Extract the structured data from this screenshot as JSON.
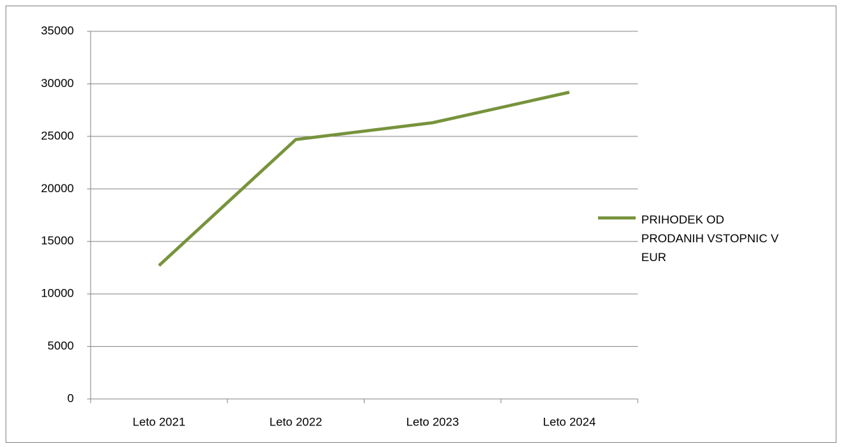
{
  "chart_data": {
    "type": "line",
    "categories": [
      "Leto 2021",
      "Leto 2022",
      "Leto 2023",
      "Leto 2024"
    ],
    "series": [
      {
        "name": "PRIHODEK OD PRODANIH VSTOPNIC V EUR",
        "color": "#77933c",
        "values": [
          12700,
          24700,
          26300,
          29200
        ]
      }
    ],
    "ylim": [
      0,
      35000
    ],
    "yticks": [
      0,
      5000,
      10000,
      15000,
      20000,
      25000,
      30000,
      35000
    ],
    "grid": true,
    "legend": "right"
  }
}
